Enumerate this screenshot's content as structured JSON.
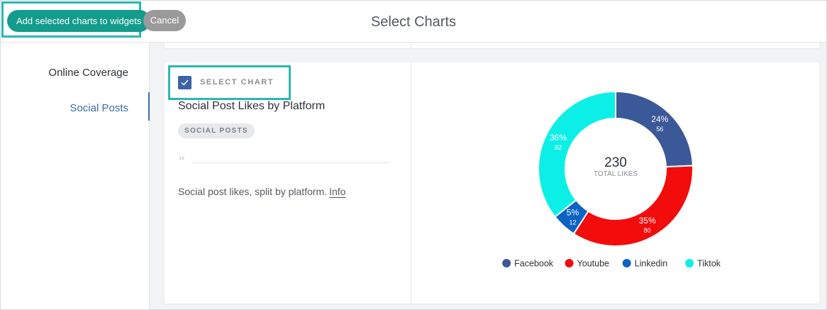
{
  "header": {
    "title": "Select Charts",
    "add_button_label": "Add selected charts to widgets",
    "cancel_button_label": "Cancel"
  },
  "sidebar": {
    "items": [
      {
        "label": "Online Coverage",
        "active": false
      },
      {
        "label": "Social Posts",
        "active": true
      }
    ]
  },
  "card": {
    "select_label": "SELECT CHART",
    "selected": true,
    "title": "Social Post Likes by Platform",
    "tag": "SOCIAL POSTS",
    "quote_glyph": "“",
    "description": "Social post likes, split by platform.",
    "info_link": "Info"
  },
  "chart_data": {
    "type": "pie",
    "variant": "donut",
    "center_value": "230",
    "center_label": "TOTAL LIKES",
    "legend_placement": "bottom",
    "slices": [
      {
        "name": "Facebook",
        "value": 56,
        "percent_label": "24%",
        "color": "#3b5998"
      },
      {
        "name": "Youtube",
        "value": 80,
        "percent_label": "35%",
        "color": "#f20c0c"
      },
      {
        "name": "Linkedin",
        "value": 12,
        "percent_label": "5%",
        "color": "#0d63c4"
      },
      {
        "name": "Tiktok",
        "value": 82,
        "percent_label": "36%",
        "color": "#0cefe6"
      }
    ]
  }
}
